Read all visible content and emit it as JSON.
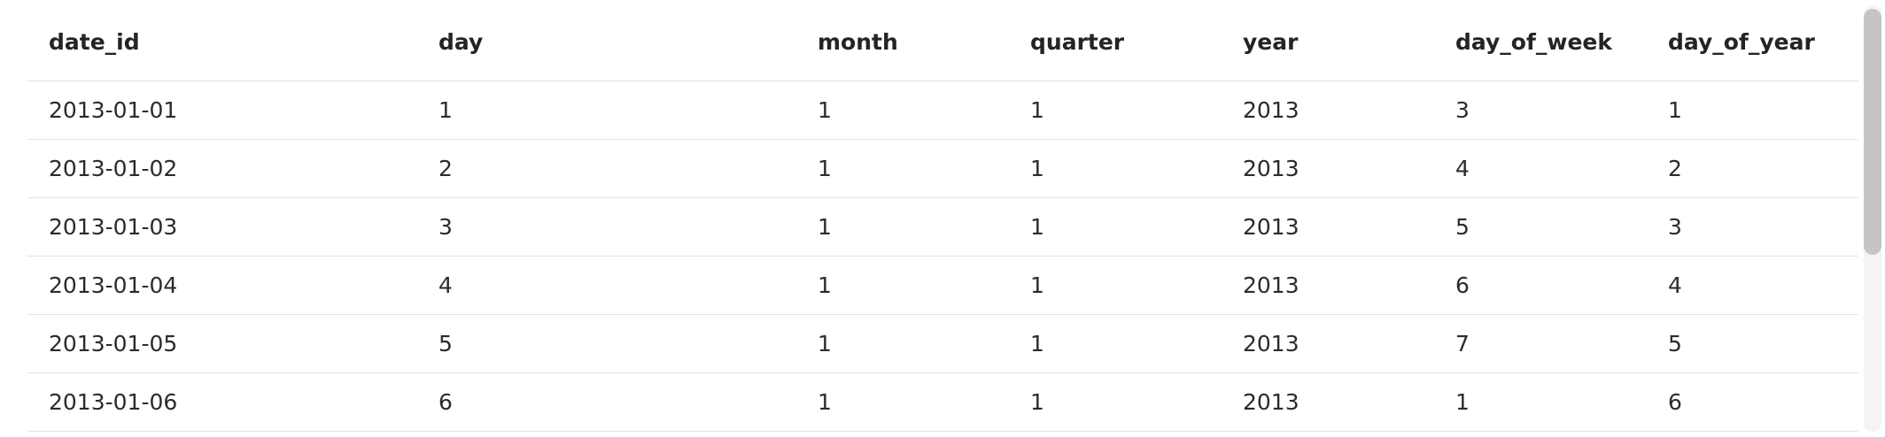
{
  "table": {
    "columns": [
      "date_id",
      "day",
      "month",
      "quarter",
      "year",
      "day_of_week",
      "day_of_year"
    ],
    "rows": [
      [
        "2013-01-01",
        "1",
        "1",
        "1",
        "2013",
        "3",
        "1"
      ],
      [
        "2013-01-02",
        "2",
        "1",
        "1",
        "2013",
        "4",
        "2"
      ],
      [
        "2013-01-03",
        "3",
        "1",
        "1",
        "2013",
        "5",
        "3"
      ],
      [
        "2013-01-04",
        "4",
        "1",
        "1",
        "2013",
        "6",
        "4"
      ],
      [
        "2013-01-05",
        "5",
        "1",
        "1",
        "2013",
        "7",
        "5"
      ],
      [
        "2013-01-06",
        "6",
        "1",
        "1",
        "2013",
        "1",
        "6"
      ]
    ]
  }
}
